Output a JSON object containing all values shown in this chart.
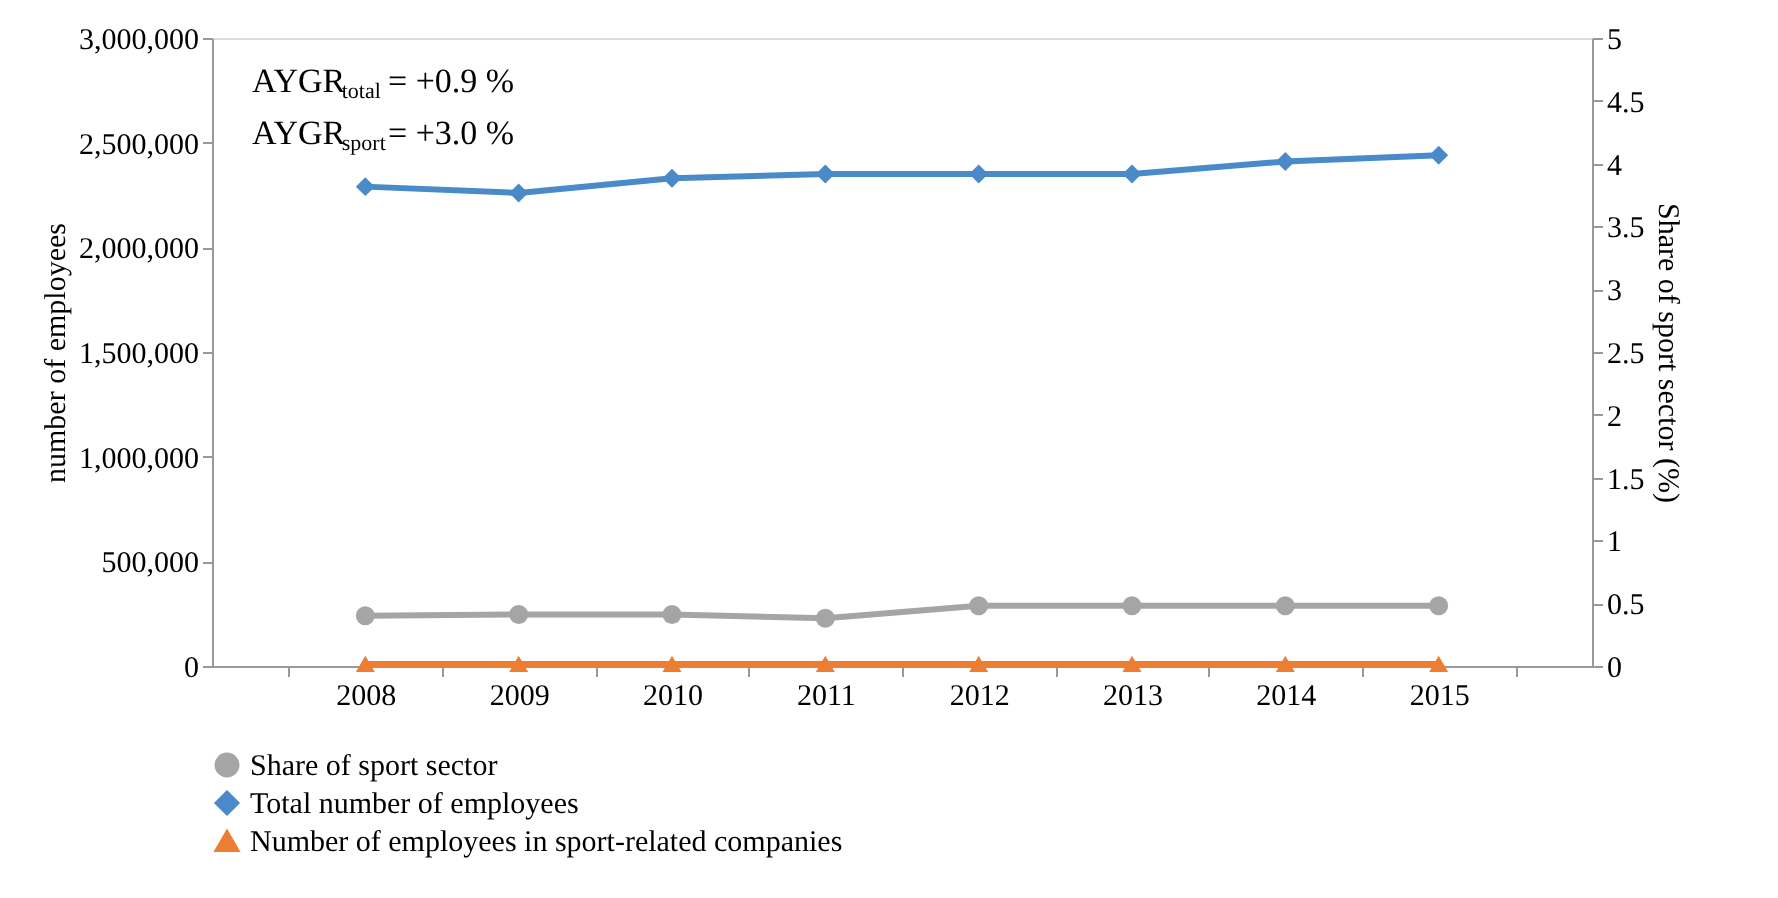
{
  "chart_data": {
    "type": "line",
    "categories": [
      "2008",
      "2009",
      "2010",
      "2011",
      "2012",
      "2013",
      "2014",
      "2015"
    ],
    "series": [
      {
        "name": "Share of sport sector",
        "color": "#a5a5a5",
        "marker": "circle",
        "axis": "y2",
        "values": [
          0.4,
          0.41,
          0.41,
          0.38,
          0.48,
          0.48,
          0.48,
          0.48
        ]
      },
      {
        "name": "Total number of employees",
        "color": "#4a8ac9",
        "marker": "diamond",
        "values": [
          2290000,
          2260000,
          2330000,
          2350000,
          2350000,
          2350000,
          2410000,
          2440000
        ]
      },
      {
        "name": "Number of employees in sport-related companies",
        "color": "#ed7d31",
        "marker": "triangle",
        "values": [
          10000,
          10000,
          10000,
          10000,
          10000,
          10000,
          10000,
          10000
        ]
      }
    ],
    "ylabel": "number of employees",
    "y2label": "Share of sport sector (%)",
    "ylim": [
      0,
      3000000
    ],
    "yticks": [
      0,
      {
        "value": 500000,
        "label": "500,000"
      },
      {
        "value": 1000000,
        "label": "1,000,000"
      },
      {
        "value": 1500000,
        "label": "1,500,000"
      },
      {
        "value": 2000000,
        "label": "2,000,000"
      },
      {
        "value": 2500000,
        "label": "2,500,000"
      },
      {
        "value": 3000000,
        "label": "3,000,000"
      }
    ],
    "y2lim": [
      0,
      5
    ],
    "y2ticks": [
      0,
      0.5,
      1,
      1.5,
      2,
      2.5,
      3,
      3.5,
      4,
      4.5,
      5
    ],
    "annotations": [
      "AYGR$_{total}$= +0.9 %",
      "AYGR$_{sport}$= +3.0 %"
    ],
    "legend": "bottom",
    "grid": false
  }
}
